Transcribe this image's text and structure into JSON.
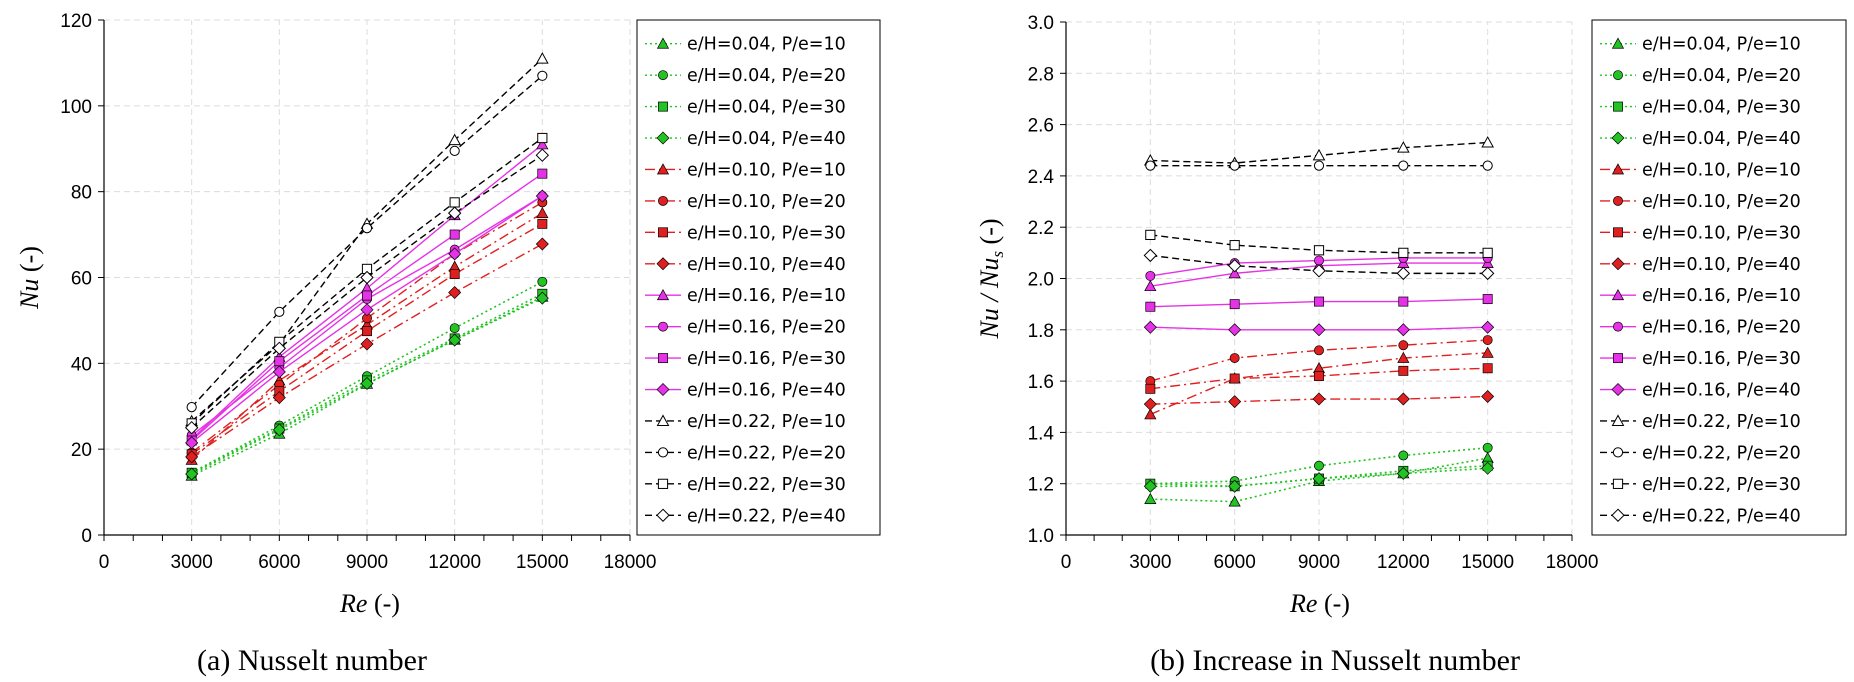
{
  "colors": {
    "green": "#22c322",
    "red": "#e02020",
    "magenta": "#e632e6",
    "black": "#000000"
  },
  "series_styles": [
    {
      "color": "#22c322",
      "dash": "dotted"
    },
    {
      "color": "#e02020",
      "dash": "dashdot"
    },
    {
      "color": "#e632e6",
      "dash": "solid"
    },
    {
      "color": "#000000",
      "dash": "dashed",
      "hollow": true
    }
  ],
  "chart_data": [
    {
      "type": "line",
      "caption": "(a) Nusselt number",
      "title": "",
      "xlabel": {
        "main": "Re",
        "unit": " (-)"
      },
      "ylabel": {
        "main": "Nu",
        "unit": " (-)"
      },
      "xlim": [
        0,
        18000
      ],
      "ylim": [
        0,
        120
      ],
      "xticks": [
        0,
        3000,
        6000,
        9000,
        12000,
        15000,
        18000
      ],
      "xtick_labels": [
        "0",
        "3000",
        "6000",
        "9000",
        "12000",
        "15000",
        "18000"
      ],
      "yticks": [
        0,
        20,
        40,
        60,
        80,
        100,
        120
      ],
      "ytick_labels": [
        "0",
        "20",
        "40",
        "60",
        "80",
        "100",
        "120"
      ],
      "grid": true,
      "legend_position": "right",
      "x": [
        3000,
        6000,
        9000,
        12000,
        15000
      ],
      "series": [
        {
          "name": "e/H=0.04, P/e=10",
          "group": 0,
          "marker": "triangle",
          "values": [
            13.8,
            23.6,
            35.2,
            45.5,
            55.5
          ]
        },
        {
          "name": "e/H=0.04, P/e=20",
          "group": 0,
          "marker": "circle",
          "values": [
            14.5,
            25.5,
            37.0,
            48.2,
            59.0
          ]
        },
        {
          "name": "e/H=0.04, P/e=30",
          "group": 0,
          "marker": "square",
          "values": [
            14.5,
            24.8,
            36.0,
            45.8,
            56.2
          ]
        },
        {
          "name": "e/H=0.04, P/e=40",
          "group": 0,
          "marker": "diamond",
          "values": [
            14.2,
            24.5,
            35.3,
            45.4,
            55.2
          ]
        },
        {
          "name": "e/H=0.10, P/e=10",
          "group": 1,
          "marker": "triangle",
          "values": [
            17.5,
            36.0,
            49.0,
            62.5,
            75.0
          ]
        },
        {
          "name": "e/H=0.10, P/e=20",
          "group": 1,
          "marker": "circle",
          "values": [
            19.2,
            35.0,
            50.5,
            65.5,
            77.5
          ]
        },
        {
          "name": "e/H=0.10, P/e=30",
          "group": 1,
          "marker": "square",
          "values": [
            18.8,
            33.5,
            47.5,
            60.8,
            72.5
          ]
        },
        {
          "name": "e/H=0.10, P/e=40",
          "group": 1,
          "marker": "diamond",
          "values": [
            18.2,
            32.0,
            44.5,
            56.5,
            67.8
          ]
        },
        {
          "name": "e/H=0.16, P/e=10",
          "group": 2,
          "marker": "triangle",
          "values": [
            22.3,
            41.5,
            57.5,
            74.5,
            91.0
          ]
        },
        {
          "name": "e/H=0.16, P/e=20",
          "group": 2,
          "marker": "circle",
          "values": [
            23.2,
            39.0,
            55.0,
            66.5,
            79.0
          ]
        },
        {
          "name": "e/H=0.16, P/e=30",
          "group": 2,
          "marker": "square",
          "values": [
            22.0,
            40.5,
            55.8,
            70.0,
            84.2
          ]
        },
        {
          "name": "e/H=0.16, P/e=40",
          "group": 2,
          "marker": "diamond",
          "values": [
            21.5,
            38.0,
            52.5,
            65.5,
            79.0
          ]
        },
        {
          "name": "e/H=0.22, P/e=10",
          "group": 3,
          "marker": "triangle",
          "values": [
            26.5,
            44.5,
            72.5,
            92.0,
            111.0
          ]
        },
        {
          "name": "e/H=0.22, P/e=20",
          "group": 3,
          "marker": "circle",
          "values": [
            29.8,
            52.0,
            71.5,
            89.5,
            107.0
          ]
        },
        {
          "name": "e/H=0.22, P/e=30",
          "group": 3,
          "marker": "square",
          "values": [
            26.0,
            45.0,
            62.0,
            77.5,
            92.5
          ]
        },
        {
          "name": "e/H=0.22, P/e=40",
          "group": 3,
          "marker": "diamond",
          "values": [
            25.0,
            43.5,
            60.0,
            75.0,
            88.5
          ]
        }
      ]
    },
    {
      "type": "line",
      "caption": "(b) Increase in Nusselt number",
      "title": "",
      "xlabel": {
        "main": "Re",
        "unit": " (-)"
      },
      "ylabel": {
        "main": "Nu / Nu",
        "sub": "s",
        "unit": " (-)"
      },
      "xlim": [
        0,
        18000
      ],
      "ylim": [
        1.0,
        3.0
      ],
      "xticks": [
        0,
        3000,
        6000,
        9000,
        12000,
        15000,
        18000
      ],
      "xtick_labels": [
        "0",
        "3000",
        "6000",
        "9000",
        "12000",
        "15000",
        "18000"
      ],
      "yticks": [
        1.0,
        1.2,
        1.4,
        1.6,
        1.8,
        2.0,
        2.2,
        2.4,
        2.6,
        2.8,
        3.0
      ],
      "ytick_labels": [
        "1.0",
        "1.2",
        "1.4",
        "1.6",
        "1.8",
        "2.0",
        "2.2",
        "2.4",
        "2.6",
        "2.8",
        "3.0"
      ],
      "grid": true,
      "legend_position": "right",
      "x": [
        3000,
        6000,
        9000,
        12000,
        15000
      ],
      "series": [
        {
          "name": "e/H=0.04, P/e=10",
          "group": 0,
          "marker": "triangle",
          "values": [
            1.14,
            1.13,
            1.21,
            1.24,
            1.3
          ]
        },
        {
          "name": "e/H=0.04, P/e=20",
          "group": 0,
          "marker": "circle",
          "values": [
            1.2,
            1.21,
            1.27,
            1.31,
            1.34
          ]
        },
        {
          "name": "e/H=0.04, P/e=30",
          "group": 0,
          "marker": "square",
          "values": [
            1.2,
            1.19,
            1.22,
            1.25,
            1.27
          ]
        },
        {
          "name": "e/H=0.04, P/e=40",
          "group": 0,
          "marker": "diamond",
          "values": [
            1.19,
            1.19,
            1.22,
            1.24,
            1.26
          ]
        },
        {
          "name": "e/H=0.10, P/e=10",
          "group": 1,
          "marker": "triangle",
          "values": [
            1.47,
            1.61,
            1.65,
            1.69,
            1.71
          ]
        },
        {
          "name": "e/H=0.10, P/e=20",
          "group": 1,
          "marker": "circle",
          "values": [
            1.6,
            1.69,
            1.72,
            1.74,
            1.76
          ]
        },
        {
          "name": "e/H=0.10, P/e=30",
          "group": 1,
          "marker": "square",
          "values": [
            1.57,
            1.61,
            1.62,
            1.64,
            1.65
          ]
        },
        {
          "name": "e/H=0.10, P/e=40",
          "group": 1,
          "marker": "diamond",
          "values": [
            1.51,
            1.52,
            1.53,
            1.53,
            1.54
          ]
        },
        {
          "name": "e/H=0.16, P/e=10",
          "group": 2,
          "marker": "triangle",
          "values": [
            1.97,
            2.02,
            2.05,
            2.06,
            2.06
          ]
        },
        {
          "name": "e/H=0.16, P/e=20",
          "group": 2,
          "marker": "circle",
          "values": [
            2.01,
            2.06,
            2.07,
            2.08,
            2.08
          ]
        },
        {
          "name": "e/H=0.16, P/e=30",
          "group": 2,
          "marker": "square",
          "values": [
            1.89,
            1.9,
            1.91,
            1.91,
            1.92
          ]
        },
        {
          "name": "e/H=0.16, P/e=40",
          "group": 2,
          "marker": "diamond",
          "values": [
            1.81,
            1.8,
            1.8,
            1.8,
            1.81
          ]
        },
        {
          "name": "e/H=0.22, P/e=10",
          "group": 3,
          "marker": "triangle",
          "values": [
            2.46,
            2.45,
            2.48,
            2.51,
            2.53
          ]
        },
        {
          "name": "e/H=0.22, P/e=20",
          "group": 3,
          "marker": "circle",
          "values": [
            2.44,
            2.44,
            2.44,
            2.44,
            2.44
          ]
        },
        {
          "name": "e/H=0.22, P/e=30",
          "group": 3,
          "marker": "square",
          "values": [
            2.17,
            2.13,
            2.11,
            2.1,
            2.1
          ]
        },
        {
          "name": "e/H=0.22, P/e=40",
          "group": 3,
          "marker": "diamond",
          "values": [
            2.09,
            2.05,
            2.03,
            2.02,
            2.02
          ]
        }
      ]
    }
  ]
}
